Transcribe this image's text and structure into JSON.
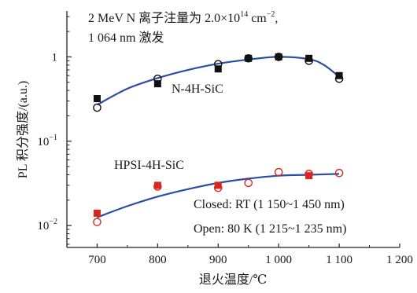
{
  "chart_data": {
    "type": "scatter",
    "annotation": {
      "line1_main": "2 MeV N 离子注量为 2.0×10",
      "line1_exp": "14",
      "line1_unit": " cm",
      "line1_unit_exp": "−2",
      "line1_tail": ",",
      "line2": "1 064 nm 激发"
    },
    "xlabel": "退火温度/℃",
    "ylabel": "PL 积分强度/(a.u.)",
    "x_axis": {
      "min": 650,
      "max": 1200,
      "ticks": [
        700,
        800,
        900,
        1000,
        1100,
        1200
      ],
      "tick_labels": [
        "700",
        "800",
        "900",
        "1 000",
        "1 100",
        "1 200"
      ]
    },
    "y_axis": {
      "scale": "log",
      "min": 0.0055,
      "max": 3.5,
      "ticks": [
        {
          "value": 1,
          "base": "1",
          "exp": ""
        },
        {
          "value": 0.1,
          "base": "10",
          "exp": "−1"
        },
        {
          "value": 0.01,
          "base": "10",
          "exp": "−2"
        }
      ]
    },
    "series": [
      {
        "name": "N-4H-SiC",
        "closed_color": "#111111",
        "open_color": "#111111",
        "fit_color": "#2b4ea2",
        "closed": [
          {
            "x": 700,
            "y": 0.32
          },
          {
            "x": 800,
            "y": 0.48
          },
          {
            "x": 900,
            "y": 0.72
          },
          {
            "x": 950,
            "y": 0.96
          },
          {
            "x": 1000,
            "y": 1.0
          },
          {
            "x": 1050,
            "y": 0.96
          },
          {
            "x": 1100,
            "y": 0.6
          }
        ],
        "open": [
          {
            "x": 700,
            "y": 0.25
          },
          {
            "x": 800,
            "y": 0.55
          },
          {
            "x": 900,
            "y": 0.82
          },
          {
            "x": 950,
            "y": 0.96
          },
          {
            "x": 1000,
            "y": 1.0
          },
          {
            "x": 1050,
            "y": 0.9
          },
          {
            "x": 1100,
            "y": 0.55
          }
        ],
        "fit": [
          {
            "x": 700,
            "y": 0.27
          },
          {
            "x": 750,
            "y": 0.42
          },
          {
            "x": 800,
            "y": 0.56
          },
          {
            "x": 850,
            "y": 0.7
          },
          {
            "x": 900,
            "y": 0.83
          },
          {
            "x": 950,
            "y": 0.93
          },
          {
            "x": 1000,
            "y": 1.0
          },
          {
            "x": 1050,
            "y": 0.94
          },
          {
            "x": 1075,
            "y": 0.8
          },
          {
            "x": 1100,
            "y": 0.58
          }
        ]
      },
      {
        "name": "HPSI-4H-SiC",
        "closed_color": "#d7281f",
        "open_color": "#d7281f",
        "fit_color": "#2b4ea2",
        "closed": [
          {
            "x": 700,
            "y": 0.014
          },
          {
            "x": 800,
            "y": 0.03
          },
          {
            "x": 900,
            "y": 0.03
          },
          {
            "x": 1050,
            "y": 0.039
          }
        ],
        "open": [
          {
            "x": 700,
            "y": 0.011
          },
          {
            "x": 800,
            "y": 0.029
          },
          {
            "x": 900,
            "y": 0.028
          },
          {
            "x": 950,
            "y": 0.032
          },
          {
            "x": 1000,
            "y": 0.043
          },
          {
            "x": 1050,
            "y": 0.041
          },
          {
            "x": 1100,
            "y": 0.042
          }
        ],
        "fit": [
          {
            "x": 700,
            "y": 0.0125
          },
          {
            "x": 750,
            "y": 0.017
          },
          {
            "x": 800,
            "y": 0.022
          },
          {
            "x": 850,
            "y": 0.027
          },
          {
            "x": 900,
            "y": 0.032
          },
          {
            "x": 950,
            "y": 0.036
          },
          {
            "x": 1000,
            "y": 0.039
          },
          {
            "x": 1050,
            "y": 0.04
          },
          {
            "x": 1100,
            "y": 0.041
          }
        ]
      }
    ],
    "conditions": {
      "closed": "Closed: RT (1 150~1 450 nm)",
      "open": "Open: 80 K (1 215~1 235 nm)"
    }
  }
}
